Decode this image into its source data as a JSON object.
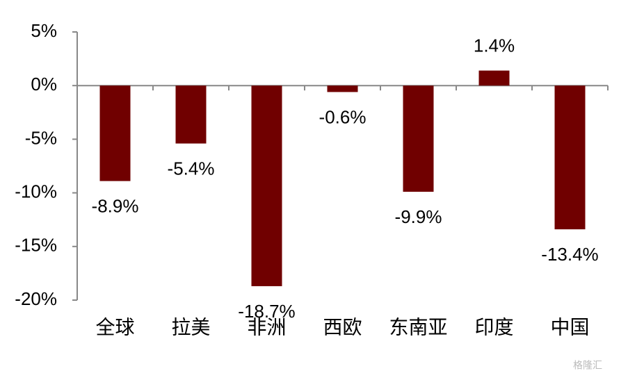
{
  "chart_data": {
    "type": "bar",
    "categories": [
      "全球",
      "拉美",
      "非洲",
      "西欧",
      "东南亚",
      "印度",
      "中国"
    ],
    "values": [
      -8.9,
      -5.4,
      -18.7,
      -0.6,
      -9.9,
      1.4,
      -13.4
    ],
    "value_labels": [
      "-8.9%",
      "-5.4%",
      "-18.7%",
      "-0.6%",
      "-9.9%",
      "1.4%",
      "-13.4%"
    ],
    "color": "#700000",
    "ylim": [
      -20,
      5
    ],
    "yticks": [
      {
        "value": -20,
        "label": "-20%"
      },
      {
        "value": -15,
        "label": "-15%"
      },
      {
        "value": -10,
        "label": "-10%"
      },
      {
        "value": -5,
        "label": "-5%"
      },
      {
        "value": 0,
        "label": "0%"
      },
      {
        "value": 5,
        "label": "5%"
      }
    ],
    "grid": false,
    "watermark": "格隆汇"
  }
}
